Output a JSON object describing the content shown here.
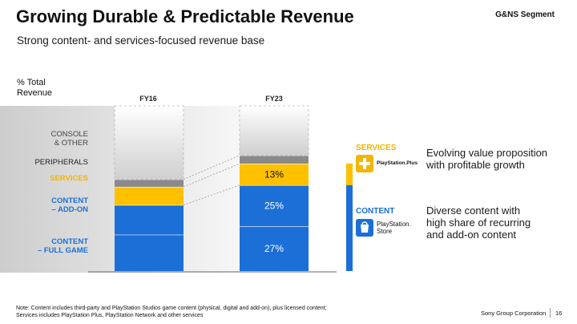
{
  "header": {
    "title": "Growing Durable & Predictable Revenue",
    "segment": "G&NS Segment",
    "subtitle": "Strong content- and services-focused revenue base"
  },
  "colors": {
    "content": "#1b6fd6",
    "services": "#ffc000",
    "peripherals": "#8a8a8a",
    "console_other": "#eeeeee",
    "services_text": "#f5b400"
  },
  "chart_data": {
    "type": "bar",
    "stacked": true,
    "y_axis_title_line1": "% Total",
    "y_axis_title_line2": "Revenue",
    "categories": [
      "FY16",
      "FY23"
    ],
    "series": [
      {
        "name": "CONTENT – FULL GAME",
        "label_line1": "CONTENT",
        "label_line2": "– FULL GAME",
        "values": [
          22,
          27
        ],
        "labels": [
          "",
          "27%"
        ],
        "color": "#1b6fd6"
      },
      {
        "name": "CONTENT – ADD-ON",
        "label_line1": "CONTENT",
        "label_line2": "– ADD-ON",
        "values": [
          18,
          25
        ],
        "labels": [
          "",
          "25%"
        ],
        "color": "#1b6fd6"
      },
      {
        "name": "SERVICES",
        "label_line1": "SERVICES",
        "values": [
          11,
          13
        ],
        "labels": [
          "",
          "13%"
        ],
        "color": "#ffc000"
      },
      {
        "name": "PERIPHERALS",
        "label_line1": "PERIPHERALS",
        "values": [
          4.5,
          5
        ],
        "labels": [
          "",
          ""
        ],
        "color": "#8a8a8a"
      },
      {
        "name": "CONSOLE & OTHER",
        "label_line1": "CONSOLE",
        "label_line2": "& OTHER",
        "values": [
          44.5,
          30
        ],
        "labels": [
          "",
          ""
        ],
        "color": "#eeeeee"
      }
    ],
    "ylim": [
      0,
      100
    ]
  },
  "right_panel": {
    "services_heading": "SERVICES",
    "services_logo_text": "PlayStation.Plus",
    "services_desc_line1": "Evolving value proposition",
    "services_desc_line2": "with profitable growth",
    "content_heading": "CONTENT",
    "content_logo_line1": "PlayStation.",
    "content_logo_line2": "Store",
    "content_desc_line1": "Diverse content with",
    "content_desc_line2": "high share of recurring",
    "content_desc_line3": "and add-on content"
  },
  "footer": {
    "note_line1": "Note: Content includes third-party and PlayStation Studios game content (physical, digital and add-on), plus licensed content;",
    "note_line2": "Services includes PlayStation Plus, PlayStation Network and other services",
    "corporation": "Sony Group Corporation",
    "page_number": "16"
  }
}
